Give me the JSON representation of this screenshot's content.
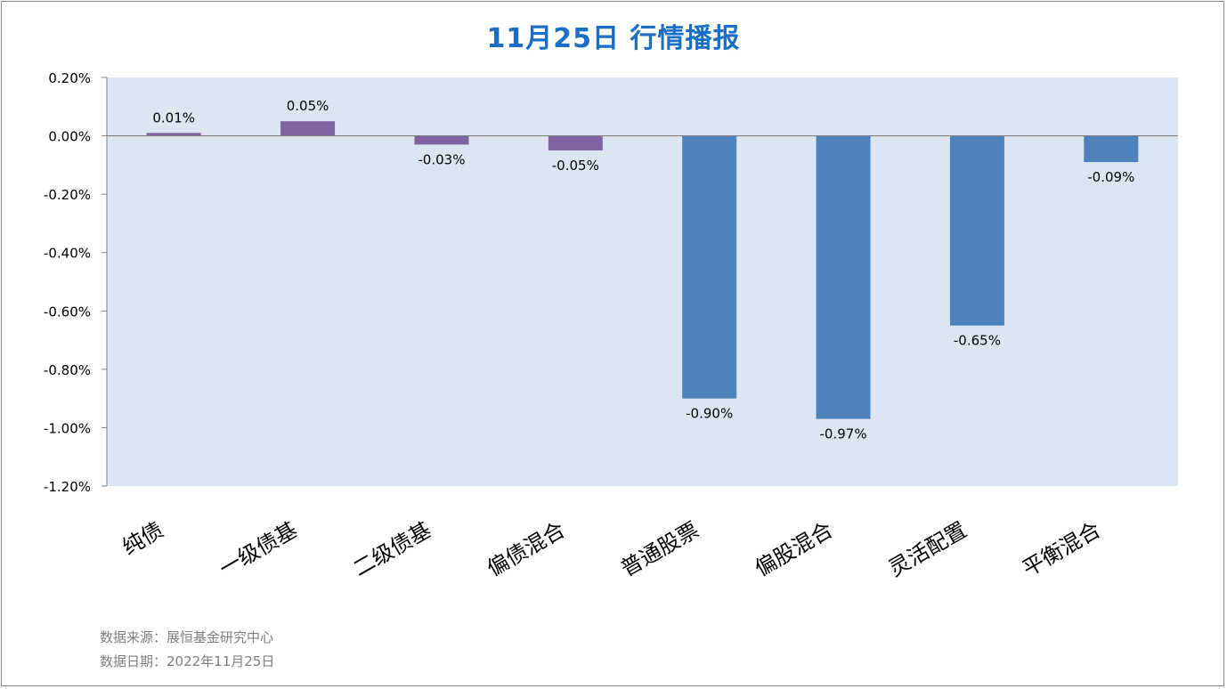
{
  "title": "11月25日  行情播报",
  "footer": {
    "source": "数据来源：展恒基金研究中心",
    "date": "数据日期：2022年11月25日"
  },
  "chart_data": {
    "type": "bar",
    "categories": [
      "纯债",
      "一级债基",
      "二级债基",
      "偏债混合",
      "普通股票",
      "偏股混合",
      "灵活配置",
      "平衡混合"
    ],
    "values": [
      0.01,
      0.05,
      -0.03,
      -0.05,
      -0.9,
      -0.97,
      -0.65,
      -0.09
    ],
    "value_labels": [
      "0.01%",
      "0.05%",
      "-0.03%",
      "-0.05%",
      "-0.90%",
      "-0.97%",
      "-0.65%",
      "-0.09%"
    ],
    "colors": [
      "#8064a2",
      "#8064a2",
      "#8064a2",
      "#8064a2",
      "#4f81bd",
      "#4f81bd",
      "#4f81bd",
      "#4f81bd"
    ],
    "ylim": [
      -1.2,
      0.2
    ],
    "yticks": [
      0.2,
      0.0,
      -0.2,
      -0.4,
      -0.6,
      -0.8,
      -1.0,
      -1.2
    ],
    "ytick_labels": [
      "0.20%",
      "0.00%",
      "-0.20%",
      "-0.40%",
      "-0.60%",
      "-0.80%",
      "-1.00%",
      "-1.20%"
    ],
    "plot_background": "#dce6f2",
    "grid": false,
    "legend": "none"
  }
}
